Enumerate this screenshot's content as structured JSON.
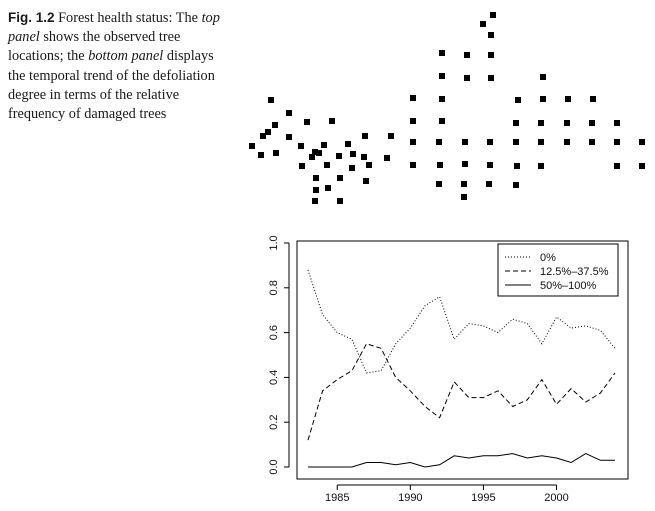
{
  "caption": {
    "label": "Fig. 1.2",
    "text_1": "Forest health status: The",
    "em_1": "top panel",
    "text_2": "shows the observed tree locations; the",
    "em_2": "bottom panel",
    "text_3": "displays the temporal trend of the defoliation degree in terms of the relative frequency of damaged trees"
  },
  "tree_map": {
    "marker": "filled-square",
    "color": "#000000"
  },
  "chart_data": {
    "type": "line",
    "title": "",
    "xlabel": "",
    "ylabel": "",
    "xlim": [
      1983,
      2004
    ],
    "ylim": [
      0.0,
      1.0
    ],
    "x_ticks": [
      "1985",
      "1990",
      "1995",
      "2000"
    ],
    "y_ticks": [
      "0.0",
      "0.2",
      "0.4",
      "0.6",
      "0.8",
      "1.0"
    ],
    "x": [
      1983,
      1984,
      1985,
      1986,
      1987,
      1988,
      1989,
      1990,
      1991,
      1992,
      1993,
      1994,
      1995,
      1996,
      1997,
      1998,
      1999,
      2000,
      2001,
      2002,
      2003,
      2004
    ],
    "legend_position": "top-right",
    "series": [
      {
        "name": "0%",
        "style": "dotted",
        "values": [
          0.88,
          0.68,
          0.6,
          0.57,
          0.42,
          0.43,
          0.55,
          0.62,
          0.72,
          0.76,
          0.57,
          0.64,
          0.63,
          0.6,
          0.66,
          0.64,
          0.55,
          0.67,
          0.62,
          0.63,
          0.61,
          0.53
        ]
      },
      {
        "name": "12.5%–37.5%",
        "style": "dashed",
        "values": [
          0.12,
          0.34,
          0.39,
          0.43,
          0.55,
          0.53,
          0.4,
          0.34,
          0.27,
          0.22,
          0.38,
          0.31,
          0.31,
          0.34,
          0.27,
          0.3,
          0.39,
          0.28,
          0.35,
          0.29,
          0.33,
          0.42
        ]
      },
      {
        "name": "50%–100%",
        "style": "solid",
        "values": [
          0.0,
          0.0,
          0.0,
          0.0,
          0.02,
          0.02,
          0.01,
          0.02,
          0.0,
          0.01,
          0.05,
          0.04,
          0.05,
          0.05,
          0.06,
          0.04,
          0.05,
          0.04,
          0.02,
          0.06,
          0.03,
          0.03
        ]
      }
    ]
  }
}
